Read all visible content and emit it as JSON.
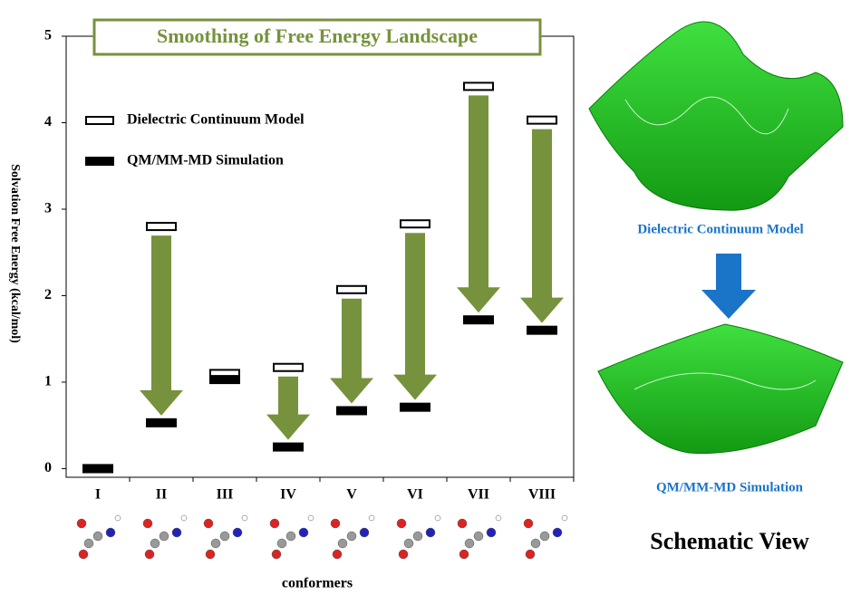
{
  "chart_data": {
    "type": "bar",
    "title": "Smoothing of Free Energy Landscape",
    "y_label": "Solvation Free Energy (kcal/mol)",
    "x_label": "conformers",
    "categories": [
      "I",
      "II",
      "III",
      "IV",
      "V",
      "VI",
      "VII",
      "VIII"
    ],
    "series": [
      {
        "name": "Dielectric Continuum Model",
        "color": "#ffffff",
        "values": [
          0,
          2.8,
          1.1,
          1.17,
          2.07,
          2.83,
          4.42,
          4.03
        ]
      },
      {
        "name": "QM/MM-MD Simulation",
        "color": "#000000",
        "values": [
          0,
          0.53,
          1.03,
          0.25,
          0.67,
          0.71,
          1.72,
          1.6
        ]
      }
    ],
    "arrow_color": "#76923c",
    "ylim": [
      -0.1,
      5
    ],
    "yticks": [
      0,
      1,
      2,
      3,
      4,
      5
    ],
    "side_panel": {
      "top_label": "Dielectric Continuum Model",
      "bottom_label": "QM/MM-MD Simulation",
      "caption": "Schematic View"
    }
  }
}
